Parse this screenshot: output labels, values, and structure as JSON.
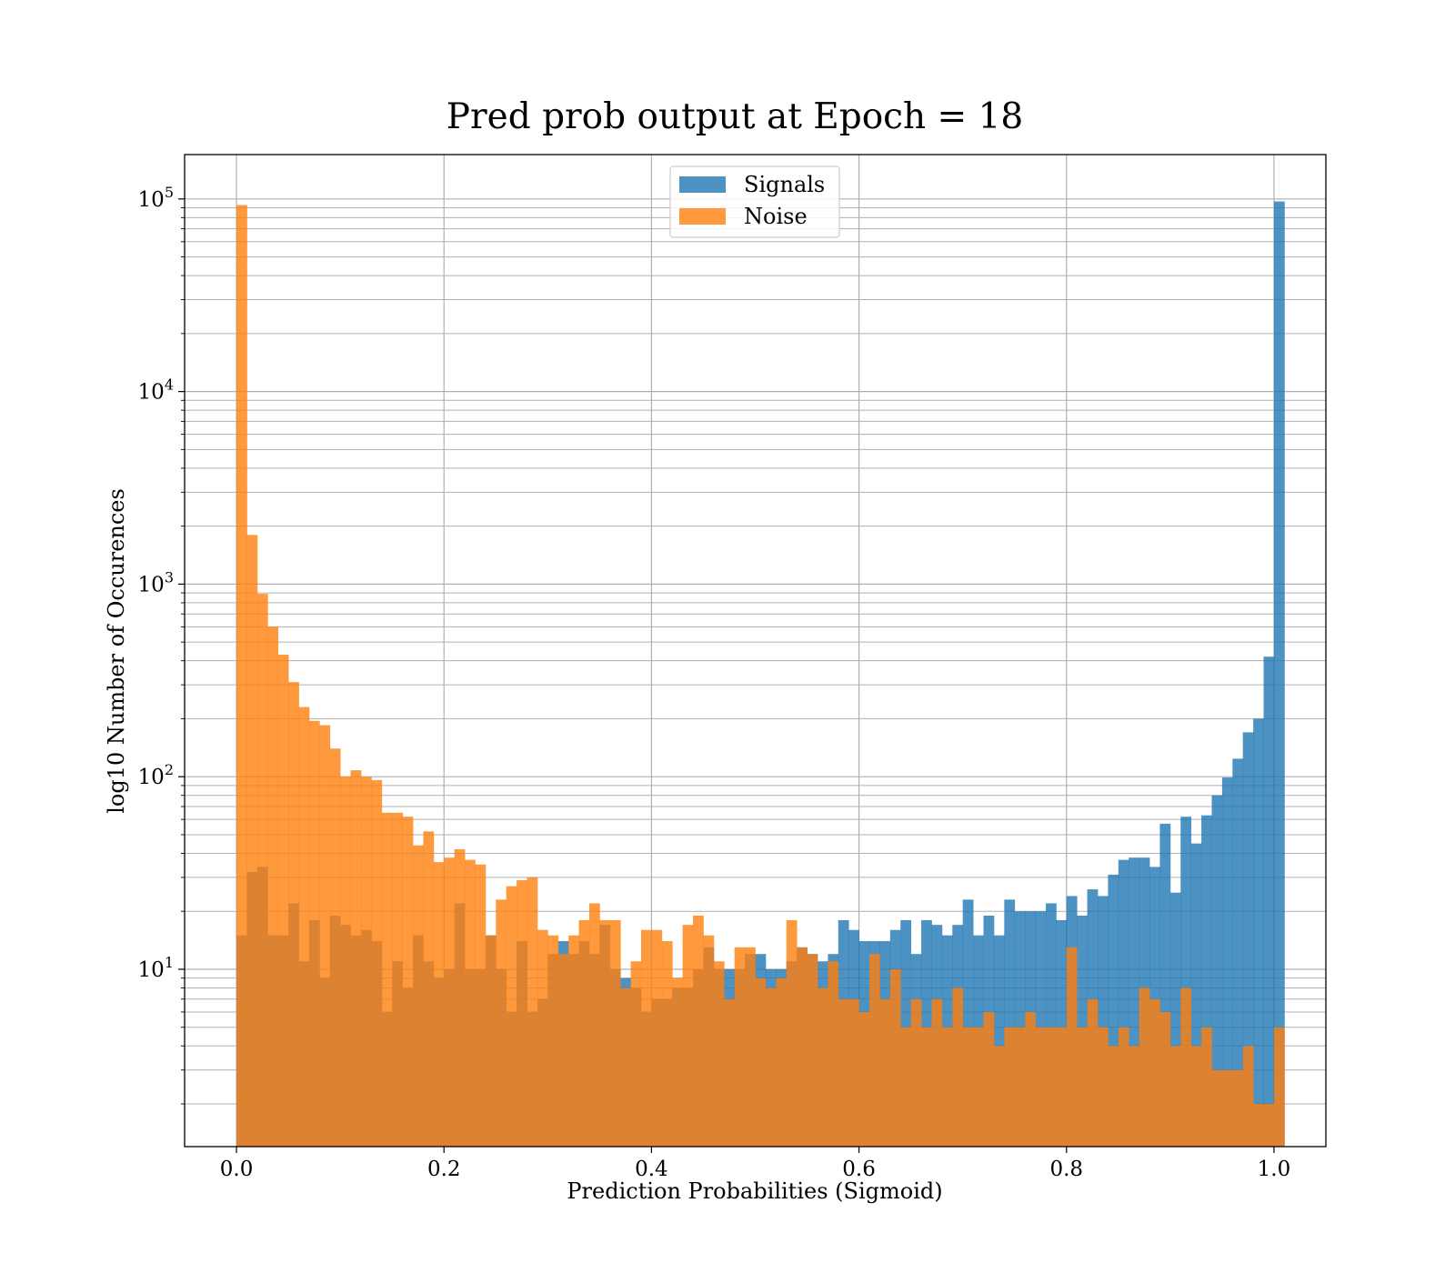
{
  "chart_data": {
    "type": "bar",
    "title": "Pred prob output at Epoch = 18",
    "xlabel": "Prediction Probabilities (Sigmoid)",
    "ylabel": "log10 Number of Occurences",
    "yscale": "log",
    "xlim": [
      -0.05,
      1.05
    ],
    "ylim": [
      1.2,
      170000
    ],
    "x_ticks": [
      "0.0",
      "0.2",
      "0.4",
      "0.6",
      "0.8",
      "1.0"
    ],
    "y_ticks": [
      {
        "base": "10",
        "exp": "1",
        "value": 10
      },
      {
        "base": "10",
        "exp": "2",
        "value": 100
      },
      {
        "base": "10",
        "exp": "3",
        "value": 1000
      },
      {
        "base": "10",
        "exp": "4",
        "value": 10000
      },
      {
        "base": "10",
        "exp": "5",
        "value": 100000
      }
    ],
    "grid": true,
    "legend": {
      "placement": "upper center",
      "entries": [
        "Signals",
        "Noise"
      ]
    },
    "bin_start": 0.0,
    "bin_width": 0.01,
    "series": [
      {
        "name": "Signals",
        "color": "#1f77b4",
        "alpha": 0.8,
        "values": [
          15,
          32,
          34,
          15,
          15,
          22,
          11,
          18,
          9,
          19,
          17,
          15,
          16,
          14,
          6,
          11,
          8,
          15,
          11,
          9,
          10,
          22,
          10,
          10,
          15,
          10,
          6,
          14,
          6,
          7,
          12,
          14,
          12,
          14,
          12,
          17,
          10,
          9,
          8,
          6,
          7,
          7,
          8,
          8,
          10,
          13,
          10,
          10,
          10,
          12,
          12,
          10,
          10,
          11,
          13,
          12,
          11,
          12,
          18,
          16,
          14,
          14,
          14,
          16,
          18,
          12,
          18,
          17,
          15,
          17,
          23,
          15,
          19,
          15,
          23,
          20,
          20,
          20,
          22,
          18,
          24,
          19,
          26,
          24,
          31,
          37,
          38,
          38,
          34,
          57,
          25,
          62,
          45,
          63,
          80,
          99,
          124,
          170,
          200,
          420,
          97000
        ]
      },
      {
        "name": "Noise",
        "color": "#ff7f0e",
        "alpha": 0.8,
        "values": [
          93000,
          1800,
          890,
          600,
          430,
          310,
          230,
          195,
          185,
          140,
          100,
          108,
          100,
          96,
          65,
          65,
          62,
          44,
          52,
          36,
          38,
          42,
          37,
          35,
          15,
          23,
          27,
          29,
          30,
          16,
          15,
          12,
          15,
          18,
          22,
          18,
          18,
          8,
          11,
          16,
          16,
          14,
          9,
          17,
          19,
          15,
          11,
          7,
          13,
          13,
          9,
          8,
          9,
          18,
          13,
          12,
          8,
          11,
          7,
          7,
          6,
          12,
          7,
          10,
          5,
          7,
          5,
          7,
          5,
          8,
          5,
          5,
          6,
          4,
          5,
          5,
          6,
          5,
          5,
          5,
          13,
          5,
          7,
          5,
          4,
          5,
          4,
          8,
          7,
          6,
          4,
          8,
          4,
          5,
          3,
          3,
          3,
          4,
          2,
          2,
          5
        ]
      }
    ]
  }
}
